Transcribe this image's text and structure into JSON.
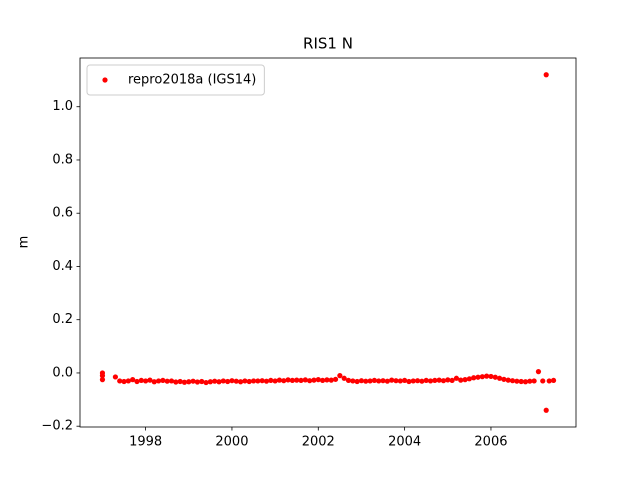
{
  "chart_data": {
    "type": "scatter",
    "title": "RIS1 N",
    "ylabel": "m",
    "series": [
      {
        "name": "repro2018a (IGS14)",
        "color": "#ff0000",
        "x": [
          1997.0,
          1997.0,
          1997.0,
          1997.3,
          1997.4,
          1997.5,
          1997.6,
          1997.7,
          1997.8,
          1997.9,
          1998.0,
          1998.1,
          1998.2,
          1998.3,
          1998.4,
          1998.5,
          1998.6,
          1998.7,
          1998.8,
          1998.9,
          1999.0,
          1999.1,
          1999.2,
          1999.3,
          1999.4,
          1999.5,
          1999.6,
          1999.7,
          1999.8,
          1999.9,
          2000.0,
          2000.1,
          2000.2,
          2000.3,
          2000.4,
          2000.5,
          2000.6,
          2000.7,
          2000.8,
          2000.9,
          2001.0,
          2001.1,
          2001.2,
          2001.3,
          2001.4,
          2001.5,
          2001.6,
          2001.7,
          2001.8,
          2001.9,
          2002.0,
          2002.1,
          2002.2,
          2002.3,
          2002.4,
          2002.5,
          2002.6,
          2002.7,
          2002.8,
          2002.9,
          2003.0,
          2003.1,
          2003.2,
          2003.3,
          2003.4,
          2003.5,
          2003.6,
          2003.7,
          2003.8,
          2003.9,
          2004.0,
          2004.1,
          2004.2,
          2004.3,
          2004.4,
          2004.5,
          2004.6,
          2004.7,
          2004.8,
          2004.9,
          2005.0,
          2005.1,
          2005.2,
          2005.3,
          2005.4,
          2005.5,
          2005.6,
          2005.7,
          2005.8,
          2005.9,
          2006.0,
          2006.1,
          2006.2,
          2006.3,
          2006.4,
          2006.5,
          2006.6,
          2006.7,
          2006.8,
          2006.9,
          2007.0,
          2007.1,
          2007.2,
          2007.28,
          2007.28,
          2007.35,
          2007.45
        ],
        "values": [
          0.0,
          -0.01,
          -0.025,
          -0.015,
          -0.03,
          -0.032,
          -0.03,
          -0.025,
          -0.032,
          -0.028,
          -0.03,
          -0.027,
          -0.033,
          -0.03,
          -0.028,
          -0.031,
          -0.03,
          -0.034,
          -0.032,
          -0.035,
          -0.033,
          -0.031,
          -0.034,
          -0.032,
          -0.036,
          -0.033,
          -0.031,
          -0.033,
          -0.03,
          -0.032,
          -0.029,
          -0.031,
          -0.033,
          -0.03,
          -0.032,
          -0.03,
          -0.03,
          -0.029,
          -0.031,
          -0.028,
          -0.03,
          -0.027,
          -0.029,
          -0.026,
          -0.028,
          -0.027,
          -0.028,
          -0.026,
          -0.029,
          -0.027,
          -0.025,
          -0.028,
          -0.026,
          -0.027,
          -0.024,
          -0.01,
          -0.02,
          -0.028,
          -0.03,
          -0.032,
          -0.029,
          -0.031,
          -0.03,
          -0.028,
          -0.03,
          -0.029,
          -0.031,
          -0.027,
          -0.029,
          -0.03,
          -0.028,
          -0.032,
          -0.03,
          -0.029,
          -0.031,
          -0.028,
          -0.03,
          -0.028,
          -0.027,
          -0.029,
          -0.026,
          -0.028,
          -0.02,
          -0.027,
          -0.025,
          -0.022,
          -0.018,
          -0.016,
          -0.014,
          -0.012,
          -0.013,
          -0.016,
          -0.02,
          -0.024,
          -0.027,
          -0.029,
          -0.031,
          -0.032,
          -0.033,
          -0.031,
          -0.03,
          0.005,
          -0.03,
          1.12,
          -0.14,
          -0.03,
          -0.028
        ]
      }
    ],
    "xlim": [
      1996.48,
      2007.97
    ],
    "xticks": [
      1998,
      2000,
      2002,
      2004,
      2006
    ],
    "ylim": [
      -0.203,
      1.183
    ],
    "yticks": [
      {
        "value": -0.2,
        "label": "−0.2"
      },
      {
        "value": 0.0,
        "label": "0.0"
      },
      0.2,
      0.4,
      0.6,
      0.8,
      {
        "value": 1.0,
        "label": "1.0"
      }
    ],
    "legend": "upper left",
    "grid": false
  }
}
